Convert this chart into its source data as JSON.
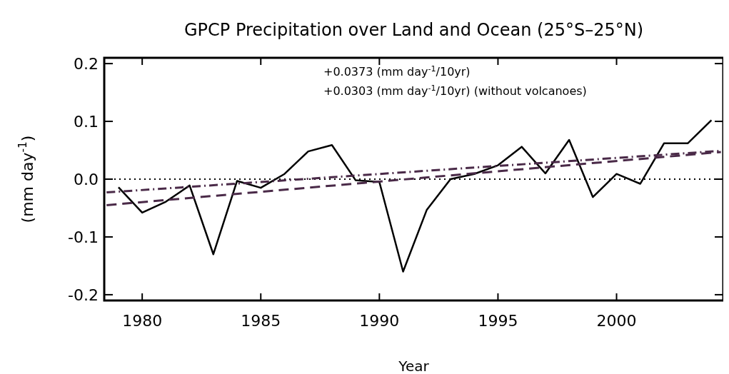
{
  "chart_data": {
    "type": "line",
    "title": "GPCP Precipitation over Land and Ocean (25°S–25°N)",
    "xlabel": "Year",
    "ylabel": "(mm day$^{-1}$)",
    "annotations": [
      "+0.0373 (mm day$^{-1}$/10yr)",
      "+0.0303 (mm day$^{-1}$/10yr) (without volcanoes)"
    ],
    "xlim": [
      1978.4,
      2004.5
    ],
    "xticks": [
      1980,
      1985,
      1990,
      1995,
      2000
    ],
    "ylim": [
      -0.21,
      0.21
    ],
    "yticks": [
      -0.2,
      -0.1,
      {
        "value": 0,
        "label": "0.0"
      },
      0.1,
      0.2
    ],
    "grid": false,
    "ref_lines": [
      {
        "axis": "y",
        "value": 0,
        "line_style": "dotted",
        "color": "#000000"
      }
    ],
    "series": [
      {
        "color": "#000000",
        "line_style": "solid",
        "x": [
          1979,
          1980,
          1981,
          1982,
          1983,
          1984,
          1985,
          1986,
          1987,
          1988,
          1989,
          1990,
          1991,
          1992,
          1993,
          1994,
          1995,
          1996,
          1997,
          1998,
          1999,
          2000,
          2001,
          2002,
          2003,
          2004
        ],
        "values": [
          -0.014,
          -0.058,
          -0.039,
          -0.011,
          -0.13,
          -0.003,
          -0.015,
          0.009,
          0.048,
          0.059,
          -0.002,
          -0.005,
          -0.16,
          -0.053,
          0,
          0.009,
          0.024,
          0.056,
          0.01,
          0.068,
          -0.031,
          0.009,
          -0.008,
          0.062,
          0.062,
          0.102
        ]
      },
      {
        "color": "#4a2a48",
        "line_style": "dashed",
        "x": [
          1978.5,
          2004.4
        ],
        "values": [
          -0.045,
          0.047
        ]
      },
      {
        "color": "#4a2a48",
        "line_style": "dashdot",
        "x": [
          1978.5,
          2004.4
        ],
        "values": [
          -0.023,
          0.049
        ]
      }
    ]
  }
}
